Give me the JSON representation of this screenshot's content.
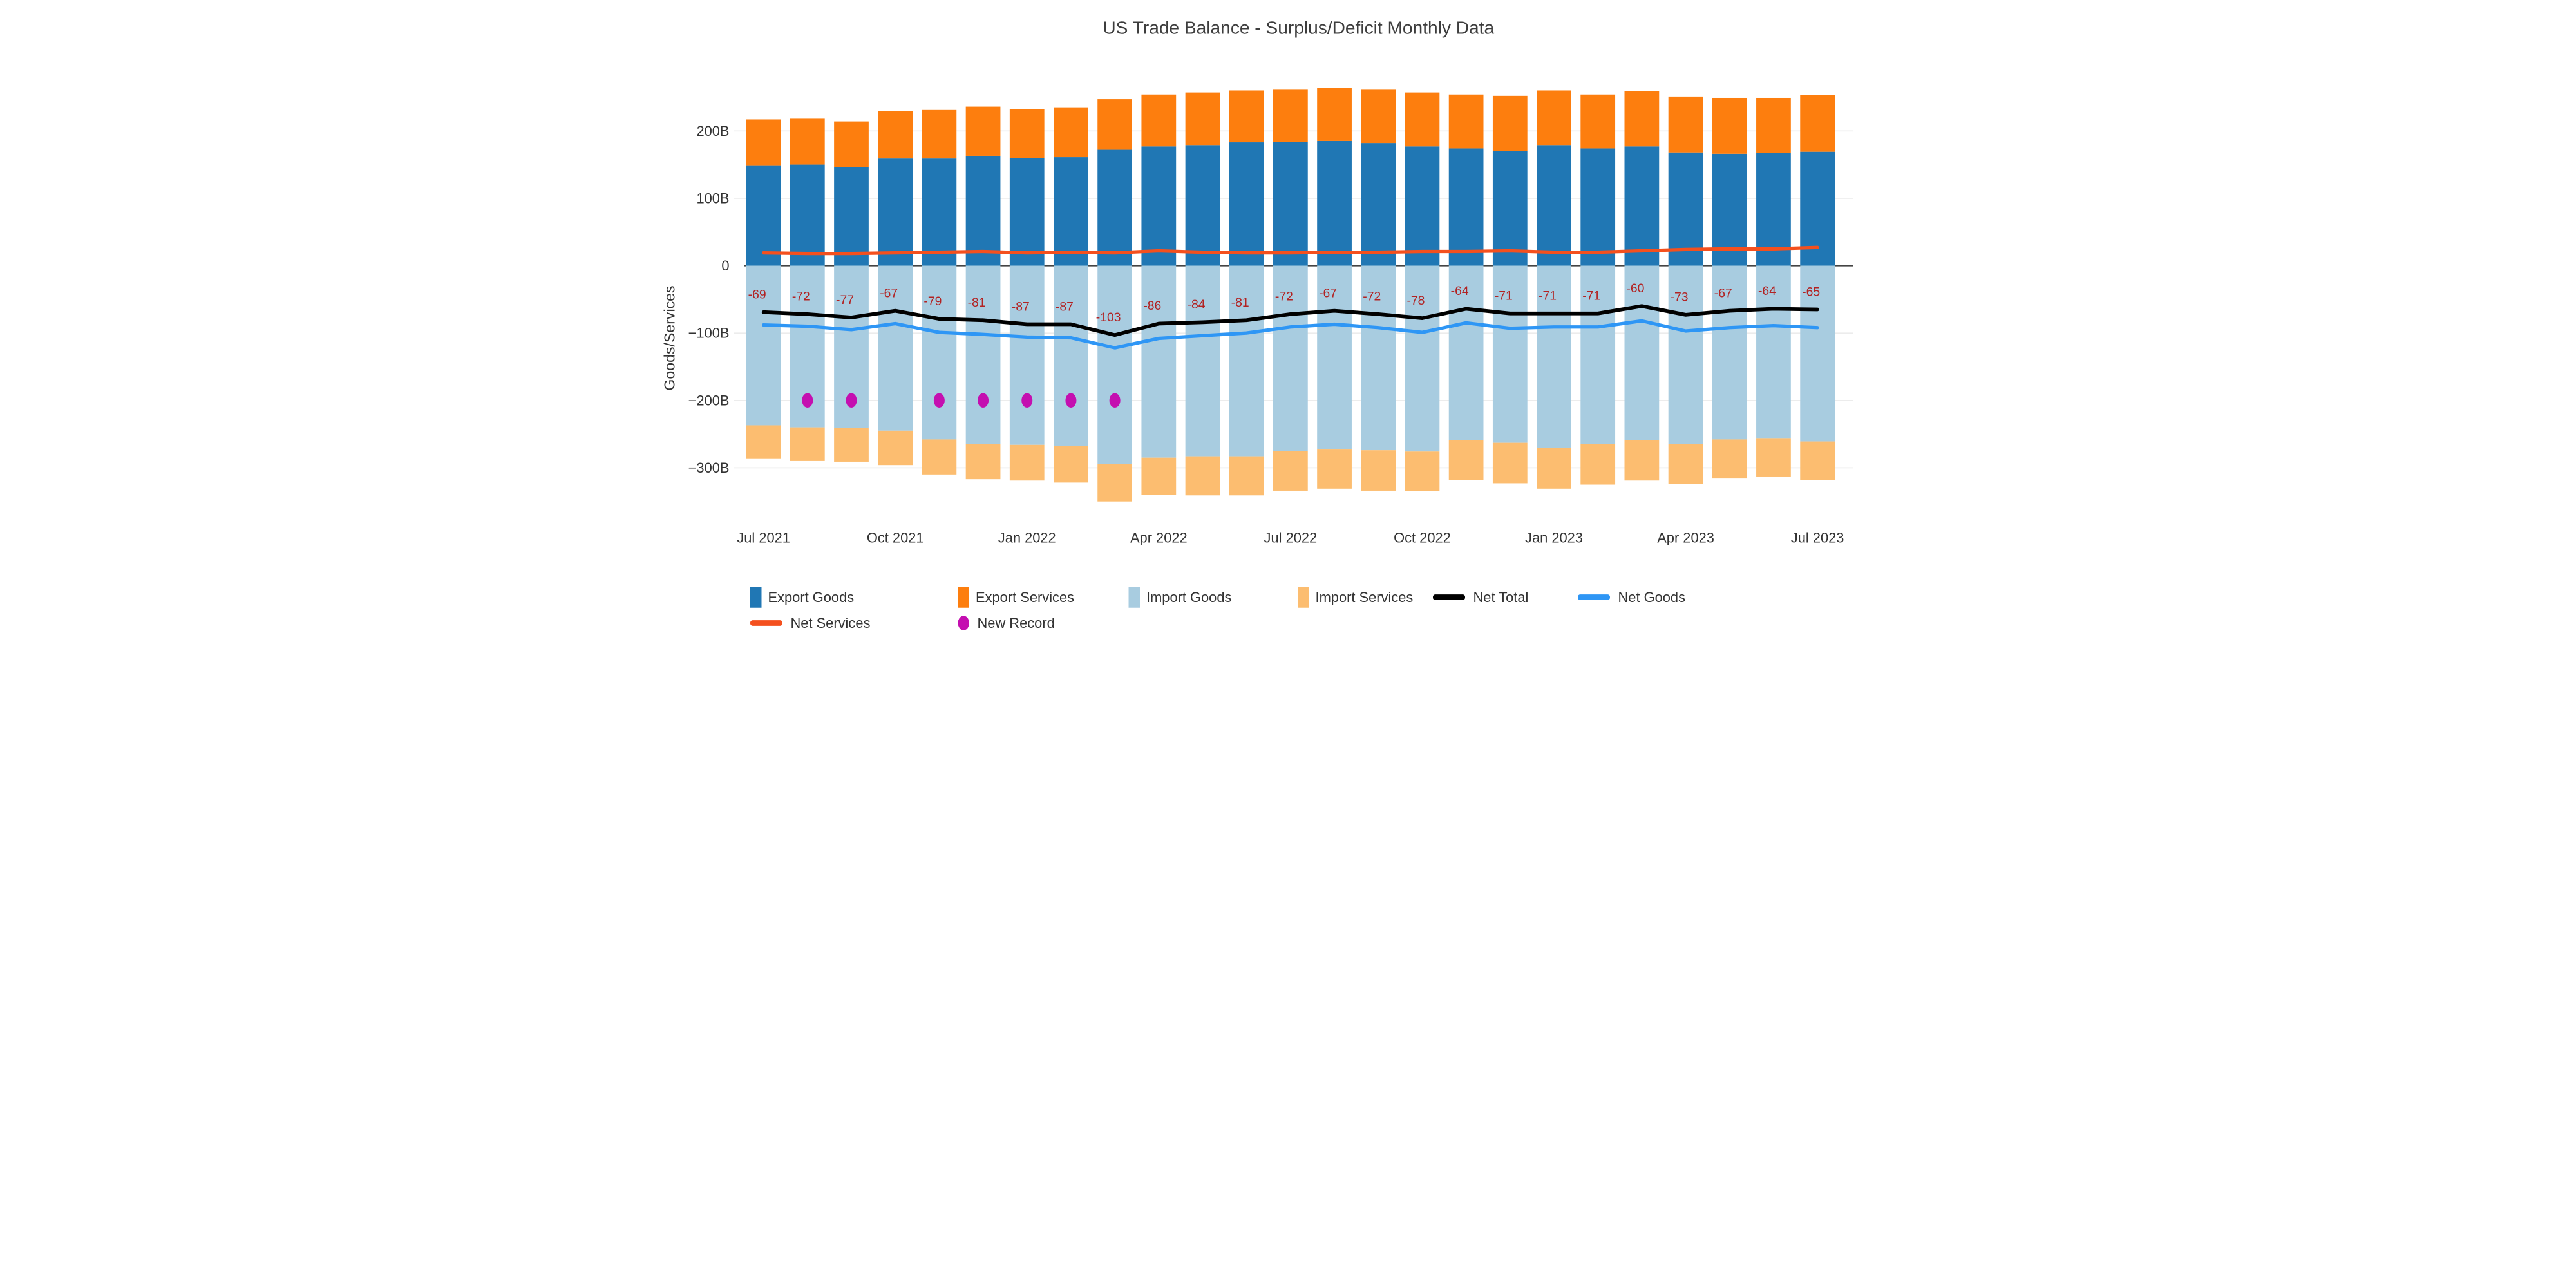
{
  "title": "US Trade Balance - Surplus/Deficit Monthly Data",
  "y_axis": {
    "title": "Goods/Services",
    "ticks": [
      {
        "label": "200B",
        "value": 200
      },
      {
        "label": "100B",
        "value": 100
      },
      {
        "label": "0",
        "value": 0
      },
      {
        "label": "−100B",
        "value": -100
      },
      {
        "label": "−200B",
        "value": -200
      },
      {
        "label": "−300B",
        "value": -300
      }
    ]
  },
  "x_axis": {
    "tick_indices": [
      0,
      3,
      6,
      9,
      12,
      15,
      18,
      21,
      24
    ],
    "tick_labels": [
      "Jul 2021",
      "Oct 2021",
      "Jan 2022",
      "Apr 2022",
      "Jul 2022",
      "Oct 2022",
      "Jan 2023",
      "Apr 2023",
      "Jul 2023"
    ]
  },
  "colors": {
    "export_goods": "#2077b4",
    "export_services": "#fd7e0e",
    "import_goods": "#a8cce0",
    "import_services": "#fcbd70",
    "net_total": "#000000",
    "net_goods": "#2e96f5",
    "net_services": "#f4501e",
    "new_record": "#c40fb0",
    "net_label": "#b22222",
    "grid": "#ececec",
    "zero_line": "#444444",
    "title_text": "#3d3d3d",
    "tick_text": "#333333"
  },
  "legend": {
    "rows": [
      [
        {
          "label": "Export Goods",
          "marker": "bar",
          "color": "#2077b4"
        },
        {
          "label": "Export Services",
          "marker": "bar",
          "color": "#fd7e0e"
        },
        {
          "label": "Import Goods",
          "marker": "bar",
          "color": "#a8cce0"
        },
        {
          "label": "Import Services",
          "marker": "bar",
          "color": "#fcbd70"
        },
        {
          "label": "Net Total",
          "marker": "line",
          "color": "#000000"
        },
        {
          "label": "Net Goods",
          "marker": "line",
          "color": "#2e96f5"
        }
      ],
      [
        {
          "label": "Net Services",
          "marker": "line",
          "color": "#f4501e"
        },
        {
          "label": "New Record",
          "marker": "dot",
          "color": "#c40fb0"
        }
      ]
    ]
  },
  "chart_data": {
    "type": "combo",
    "title": "US Trade Balance - Surplus/Deficit Monthly Data",
    "ylabel": "Goods/Services",
    "ylim": [
      -360,
      290
    ],
    "unit": "billion USD",
    "grid": "horizontal",
    "legend_position": "bottom",
    "categories": [
      "Jul 2021",
      "Aug 2021",
      "Sep 2021",
      "Oct 2021",
      "Nov 2021",
      "Dec 2021",
      "Jan 2022",
      "Feb 2022",
      "Mar 2022",
      "Apr 2022",
      "May 2022",
      "Jun 2022",
      "Jul 2022",
      "Aug 2022",
      "Sep 2022",
      "Oct 2022",
      "Nov 2022",
      "Dec 2022",
      "Jan 2023",
      "Feb 2023",
      "Mar 2023",
      "Apr 2023",
      "May 2023",
      "Jun 2023",
      "Jul 2023"
    ],
    "bar_series": [
      {
        "name": "Export Goods",
        "stack": "exports",
        "color": "#2077b4",
        "values": [
          149,
          150,
          146,
          159,
          159,
          163,
          160,
          161,
          172,
          177,
          179,
          183,
          184,
          185,
          182,
          177,
          174,
          170,
          179,
          174,
          177,
          168,
          166,
          167,
          169
        ]
      },
      {
        "name": "Export Services",
        "stack": "exports",
        "color": "#fd7e0e",
        "values": [
          68,
          68,
          68,
          70,
          72,
          73,
          72,
          74,
          75,
          77,
          78,
          77,
          78,
          79,
          80,
          80,
          80,
          82,
          81,
          80,
          82,
          83,
          83,
          82,
          84
        ]
      },
      {
        "name": "Import Goods",
        "stack": "imports",
        "color": "#a8cce0",
        "values": [
          -237,
          -240,
          -241,
          -245,
          -258,
          -265,
          -266,
          -268,
          -294,
          -285,
          -283,
          -283,
          -275,
          -272,
          -274,
          -276,
          -259,
          -263,
          -270,
          -265,
          -259,
          -265,
          -258,
          -256,
          -261
        ]
      },
      {
        "name": "Import Services",
        "stack": "imports",
        "color": "#fcbd70",
        "values": [
          -49,
          -50,
          -50,
          -51,
          -52,
          -52,
          -53,
          -54,
          -56,
          -55,
          -58,
          -58,
          -59,
          -59,
          -60,
          -59,
          -59,
          -60,
          -61,
          -60,
          -60,
          -59,
          -58,
          -57,
          -57
        ]
      }
    ],
    "line_series": [
      {
        "name": "Net Total",
        "color": "#000000",
        "width": 4.6,
        "values": [
          -69,
          -72,
          -77,
          -67,
          -79,
          -81,
          -87,
          -87,
          -103,
          -86,
          -84,
          -81,
          -72,
          -67,
          -72,
          -78,
          -64,
          -71,
          -71,
          -71,
          -60,
          -73,
          -67,
          -64,
          -65
        ],
        "show_labels": true
      },
      {
        "name": "Net Goods",
        "color": "#2e96f5",
        "width": 4.2,
        "values": [
          -88,
          -90,
          -95,
          -86,
          -99,
          -102,
          -106,
          -107,
          -122,
          -108,
          -104,
          -100,
          -91,
          -87,
          -92,
          -99,
          -85,
          -93,
          -91,
          -91,
          -82,
          -97,
          -92,
          -89,
          -92
        ],
        "show_labels": false
      },
      {
        "name": "Net Services",
        "color": "#f4501e",
        "width": 4.2,
        "values": [
          19,
          18,
          18,
          19,
          20,
          21,
          19,
          20,
          19,
          22,
          20,
          19,
          19,
          20,
          20,
          21,
          21,
          22,
          20,
          20,
          22,
          24,
          25,
          25,
          27
        ],
        "show_labels": false
      }
    ],
    "scatter_series": [
      {
        "name": "New Record",
        "color": "#c40fb0",
        "y": -200,
        "indices": [
          1,
          2,
          4,
          5,
          6,
          7,
          8
        ]
      }
    ]
  }
}
